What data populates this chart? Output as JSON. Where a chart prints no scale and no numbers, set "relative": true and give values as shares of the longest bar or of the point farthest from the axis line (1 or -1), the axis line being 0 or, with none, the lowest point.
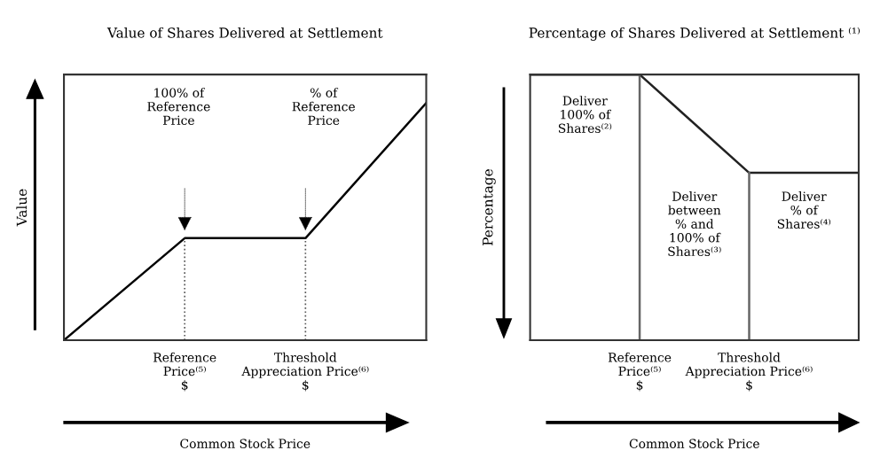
{
  "chart_data": [
    {
      "type": "line",
      "title": "Value of Shares Delivered at Settlement",
      "ylabel": "Value",
      "xlabel": "Common Stock Price",
      "relative": true,
      "categories": [
        null,
        "Reference\nPrice⁽⁵⁾\n$",
        "Threshold\nAppreciation Price⁽⁶⁾\n$",
        null
      ],
      "series": [
        {
          "color": "#000000",
          "values": [
            0,
            0.43,
            0.43,
            1
          ]
        }
      ],
      "ref_lines": [
        {
          "axis": "x",
          "value": "Reference\nPrice⁽⁵⁾\n$",
          "color": "#555555",
          "line_style": "dotted"
        },
        {
          "axis": "x",
          "value": "Threshold\nAppreciation Price⁽⁶⁾\n$",
          "color": "#555555",
          "line_style": "dotted"
        }
      ],
      "annotations": [
        "100% of\nReference\nPrice",
        "% of\nReference\nPrice"
      ],
      "grid": false,
      "marker": "none",
      "line_style": "solid"
    },
    {
      "type": "line",
      "title": "Percentage of Shares Delivered at Settlement ⁽¹⁾",
      "ylabel": "Percentage",
      "xlabel": "Common Stock Price",
      "relative": true,
      "categories": [
        null,
        "Reference\nPrice⁽⁵⁾\n$",
        "Threshold\nAppreciation Price⁽⁶⁾\n$",
        null
      ],
      "series": [
        {
          "color": "#222222",
          "values": [
            1,
            1,
            0.63,
            0.63
          ]
        }
      ],
      "ref_lines": [
        {
          "axis": "x",
          "value": "Reference\nPrice⁽⁵⁾\n$",
          "color": "#666666",
          "line_style": "solid"
        },
        {
          "axis": "x",
          "value": "Threshold\nAppreciation Price⁽⁶⁾\n$",
          "color": "#666666",
          "line_style": "solid"
        }
      ],
      "annotations": [
        "Deliver\n100% of\nShares⁽²⁾",
        "Deliver\nbetween\n% and\n100% of\nShares⁽³⁾",
        "Deliver\n% of\nShares⁽⁴⁾"
      ],
      "grid": false,
      "marker": "none",
      "line_style": "solid"
    }
  ]
}
